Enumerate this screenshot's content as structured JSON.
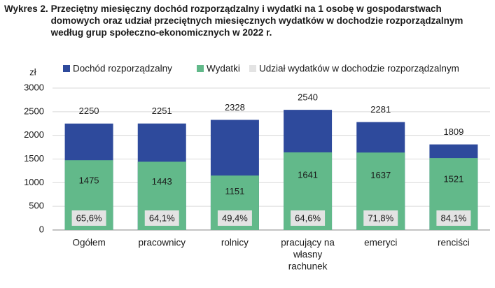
{
  "figure": {
    "label": "Wykres 2.",
    "title": "Przeciętny miesięczny dochód rozporządzalny i wydatki na 1 osobę w gospodarstwach domowych oraz udział przeciętnych miesięcznych wydatków w dochodzie rozporządzalnym według grup społeczno-ekonomicznych w 2022 r."
  },
  "colors": {
    "income": "#2e4a9c",
    "expenses": "#62b98a",
    "share_box": "#e3e3e3",
    "grid": "#d9d9d9"
  },
  "chart_data": {
    "type": "bar",
    "title": "Przeciętny miesięczny dochód rozporządzalny i wydatki na 1 osobę w gospodarstwach domowych oraz udział przeciętnych miesięcznych wydatków w dochodzie rozporządzalnym według grup społeczno-ekonomicznych w 2022 r.",
    "ylabel": "zł",
    "xlabel": "",
    "ylim": [
      0,
      3000
    ],
    "yticks": [
      0,
      500,
      1000,
      1500,
      2000,
      2500,
      3000
    ],
    "grid": true,
    "legend_position": "top",
    "categories": [
      [
        "Ogółem"
      ],
      [
        "pracownicy"
      ],
      [
        "rolnicy"
      ],
      [
        "pracujący na",
        "własny",
        "rachunek"
      ],
      [
        "emeryci"
      ],
      [
        "renciści"
      ]
    ],
    "series": [
      {
        "name": "Dochód rozporządzalny",
        "values": [
          2250,
          2251,
          2328,
          2540,
          2281,
          1809
        ],
        "labels": [
          "2250",
          "2251",
          "2328",
          "2540",
          "2281",
          "1809"
        ]
      },
      {
        "name": "Wydatki",
        "values": [
          1475,
          1443,
          1151,
          1641,
          1637,
          1521
        ],
        "labels": [
          "1475",
          "1443",
          "1151",
          "1641",
          "1637",
          "1521"
        ]
      },
      {
        "name": "Udział wydatków w dochodzie rozporządzalnym",
        "values": [
          65.6,
          64.1,
          49.4,
          64.6,
          71.8,
          84.1
        ],
        "labels": [
          "65,6%",
          "64,1%",
          "49,4%",
          "64,6%",
          "71,8%",
          "84,1%"
        ]
      }
    ]
  }
}
